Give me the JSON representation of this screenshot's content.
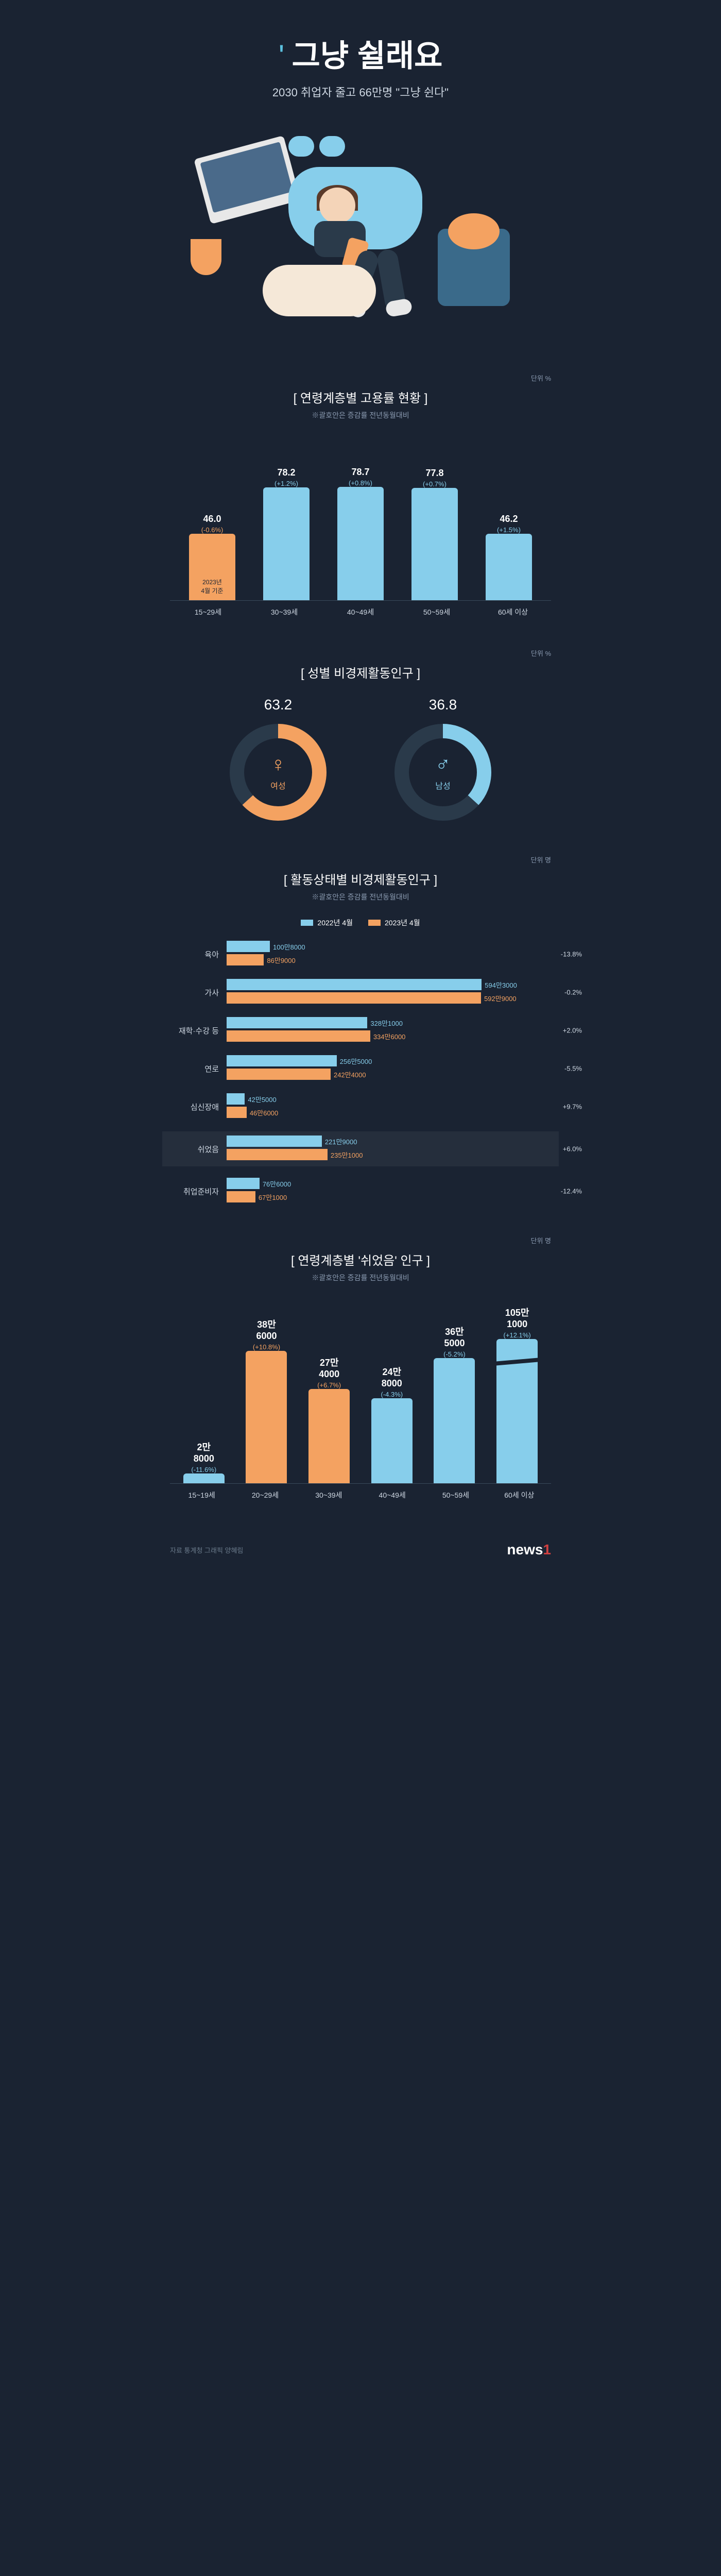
{
  "hero": {
    "quote_mark": "'",
    "title": "그냥 쉴래요",
    "subtitle": "2030 취업자 줄고 66만명 \"그냥 쉰다\""
  },
  "colors": {
    "bg": "#1a2332",
    "orange": "#f4a261",
    "blue": "#87ceeb",
    "text_light": "#cfd8e3",
    "text_muted": "#8a9ab0",
    "neg_orange": "#f4a261"
  },
  "chart1": {
    "title": "[ 연령계층별 고용률 현황 ]",
    "note": "※괄호안은 증감률 전년동월대비",
    "unit": "단위 %",
    "max": 100,
    "inner_note": "2023년\n4월 기준",
    "bars": [
      {
        "label": "15~29세",
        "value": 46.0,
        "value_str": "46.0",
        "change": "(-0.6%)",
        "change_color": "#f4a261",
        "color": "#f4a261"
      },
      {
        "label": "30~39세",
        "value": 78.2,
        "value_str": "78.2",
        "change": "(+1.2%)",
        "change_color": "#87ceeb",
        "color": "#87ceeb"
      },
      {
        "label": "40~49세",
        "value": 78.7,
        "value_str": "78.7",
        "change": "(+0.8%)",
        "change_color": "#87ceeb",
        "color": "#87ceeb"
      },
      {
        "label": "50~59세",
        "value": 77.8,
        "value_str": "77.8",
        "change": "(+0.7%)",
        "change_color": "#87ceeb",
        "color": "#87ceeb"
      },
      {
        "label": "60세 이상",
        "value": 46.2,
        "value_str": "46.2",
        "change": "(+1.5%)",
        "change_color": "#87ceeb",
        "color": "#87ceeb"
      }
    ]
  },
  "donuts": {
    "title": "[ 성별 비경제활동인구 ]",
    "unit": "단위 %",
    "items": [
      {
        "value": 63.2,
        "value_str": "63.2",
        "label": "여성",
        "icon": "♀",
        "color": "#f4a261"
      },
      {
        "value": 36.8,
        "value_str": "36.8",
        "label": "남성",
        "icon": "♂",
        "color": "#87ceeb"
      }
    ]
  },
  "hbars": {
    "title": "[ 활동상태별 비경제활동인구 ]",
    "note": "※괄호안은 증감률 전년동월대비",
    "unit": "단위 명",
    "legend": [
      {
        "label": "2022년 4월",
        "color": "#87ceeb"
      },
      {
        "label": "2023년 4월",
        "color": "#f4a261"
      }
    ],
    "max": 6000000,
    "rows": [
      {
        "cat": "육아",
        "v2022": 1008000,
        "v2022_str": "100만8000",
        "v2023": 869000,
        "v2023_str": "86만9000",
        "change": "-13.8%",
        "highlight": false
      },
      {
        "cat": "가사",
        "v2022": 5943000,
        "v2022_str": "594만3000",
        "v2023": 5929000,
        "v2023_str": "592만9000",
        "change": "-0.2%",
        "highlight": false
      },
      {
        "cat": "재학·수강 등",
        "v2022": 3281000,
        "v2022_str": "328만1000",
        "v2023": 3346000,
        "v2023_str": "334만6000",
        "change": "+2.0%",
        "highlight": false
      },
      {
        "cat": "연로",
        "v2022": 2565000,
        "v2022_str": "256만5000",
        "v2023": 2424000,
        "v2023_str": "242만4000",
        "change": "-5.5%",
        "highlight": false
      },
      {
        "cat": "심신장애",
        "v2022": 425000,
        "v2022_str": "42만5000",
        "v2023": 466000,
        "v2023_str": "46만6000",
        "change": "+9.7%",
        "highlight": false
      },
      {
        "cat": "쉬었음",
        "v2022": 2219000,
        "v2022_str": "221만9000",
        "v2023": 2351000,
        "v2023_str": "235만1000",
        "change": "+6.0%",
        "highlight": true
      },
      {
        "cat": "취업준비자",
        "v2022": 766000,
        "v2022_str": "76만6000",
        "v2023": 671000,
        "v2023_str": "67만1000",
        "change": "-12.4%",
        "highlight": false
      }
    ]
  },
  "chart2": {
    "title": "[ 연령계층별 '쉬었음' 인구 ]",
    "note": "※괄호안은 증감률 전년동월대비",
    "unit": "단위 명",
    "max": 450000,
    "bars": [
      {
        "label": "15~19세",
        "value": 28000,
        "value_str": "2만\n8000",
        "change": "(-11.6%)",
        "change_color": "#87ceeb",
        "color": "#87ceeb",
        "broken": false
      },
      {
        "label": "20~29세",
        "value": 386000,
        "value_str": "38만\n6000",
        "change": "(+10.8%)",
        "change_color": "#f4a261",
        "color": "#f4a261",
        "broken": false
      },
      {
        "label": "30~39세",
        "value": 274000,
        "value_str": "27만\n4000",
        "change": "(+6.7%)",
        "change_color": "#f4a261",
        "color": "#f4a261",
        "broken": false
      },
      {
        "label": "40~49세",
        "value": 248000,
        "value_str": "24만\n8000",
        "change": "(-4.3%)",
        "change_color": "#87ceeb",
        "color": "#87ceeb",
        "broken": false
      },
      {
        "label": "50~59세",
        "value": 365000,
        "value_str": "36만\n5000",
        "change": "(-5.2%)",
        "change_color": "#87ceeb",
        "color": "#87ceeb",
        "broken": false
      },
      {
        "label": "60세 이상",
        "value": 1051000,
        "display_height": 420000,
        "value_str": "105만\n1000",
        "change": "(+12.1%)",
        "change_color": "#87ceeb",
        "color": "#87ceeb",
        "broken": true
      }
    ]
  },
  "footer": {
    "source": "자료 통계청  그래픽 양혜림",
    "logo_text": "news",
    "logo_num": "1"
  }
}
